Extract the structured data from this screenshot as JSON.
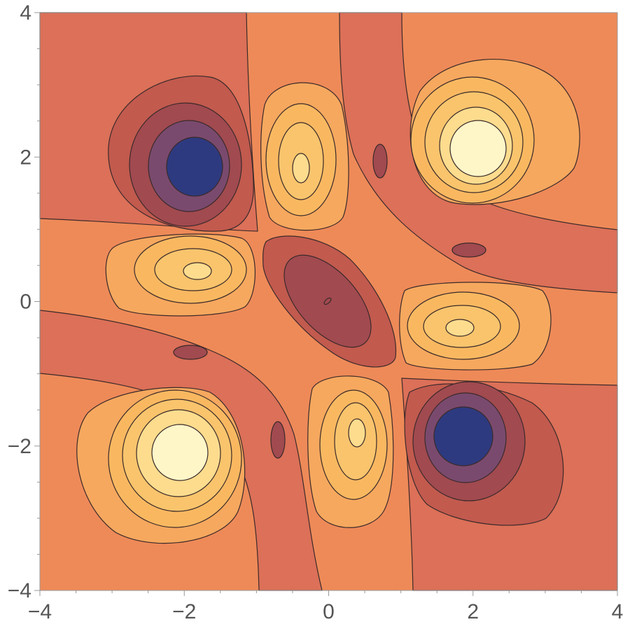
{
  "chart_data": {
    "type": "contour",
    "title": "",
    "xlabel": "",
    "ylabel": "",
    "xlim": [
      -4,
      4
    ],
    "ylim": [
      -4,
      4
    ],
    "x_ticks": [
      -4,
      -2,
      0,
      2,
      4
    ],
    "y_ticks": [
      -4,
      -2,
      0,
      2,
      4
    ],
    "x_tick_labels": [
      "−4",
      "−2",
      "0",
      "2",
      "4"
    ],
    "y_tick_labels": [
      "−4",
      "−2",
      "0",
      "2",
      "4"
    ],
    "grid": false,
    "legend": "none",
    "color_scheme": "Mathematica default contour palette (dark blue low → orange mid → cream high)",
    "palette": [
      "#2e3a80",
      "#7a4a6e",
      "#a14a50",
      "#c25a4e",
      "#dc7058",
      "#ee8a58",
      "#f6a85e",
      "#f9c46c",
      "#fddc8e",
      "#fff6c8"
    ],
    "features": [
      {
        "kind": "minimum",
        "x": -1.95,
        "y": 1.85,
        "level": 0
      },
      {
        "kind": "minimum",
        "x": 1.85,
        "y": -1.85,
        "level": 0
      },
      {
        "kind": "maximum",
        "x": 2.0,
        "y": 2.1,
        "level": 9
      },
      {
        "kind": "maximum",
        "x": -2.1,
        "y": -2.05,
        "level": 9
      },
      {
        "kind": "maximum",
        "x": -0.35,
        "y": 1.85,
        "level": 8
      },
      {
        "kind": "maximum",
        "x": 0.4,
        "y": -1.8,
        "level": 8
      },
      {
        "kind": "maximum",
        "x": -1.8,
        "y": 0.4,
        "level": 8
      },
      {
        "kind": "maximum",
        "x": 1.85,
        "y": -0.35,
        "level": 8
      },
      {
        "kind": "minimum",
        "x": 0.0,
        "y": 0.0,
        "level": 2
      },
      {
        "kind": "minimum",
        "x": 0.7,
        "y": 1.95,
        "level": 2
      },
      {
        "kind": "minimum",
        "x": 2.0,
        "y": 0.75,
        "level": 2
      },
      {
        "kind": "minimum",
        "x": -1.9,
        "y": -0.7,
        "level": 2
      },
      {
        "kind": "minimum",
        "x": -0.7,
        "y": -1.95,
        "level": 2
      }
    ]
  }
}
